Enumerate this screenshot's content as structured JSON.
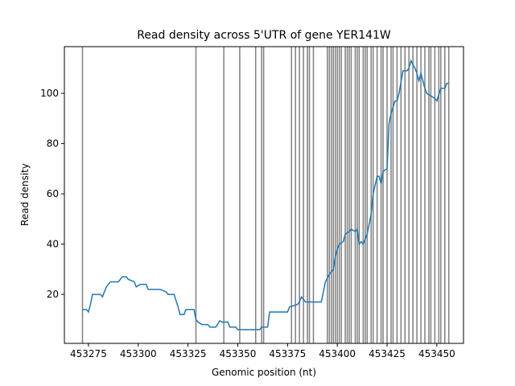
{
  "chart_data": {
    "type": "line",
    "title": "Read density across 5'UTR of gene YER141W",
    "xlabel": "Genomic position (nt)",
    "ylabel": "Read density",
    "xlim": [
      453262.9,
      453463.4
    ],
    "ylim": [
      0.5,
      118.6
    ],
    "xticks": [
      453275,
      453300,
      453325,
      453350,
      453375,
      453400,
      453425,
      453450
    ],
    "yticks": [
      20,
      40,
      60,
      80,
      100
    ],
    "x": [
      453272,
      453274,
      453275,
      453276,
      453277,
      453281,
      453282,
      453284,
      453286,
      453290,
      453292,
      453294,
      453295,
      453298,
      453299,
      453301,
      453304,
      453305,
      453311,
      453314,
      453315,
      453318,
      453320,
      453321,
      453323,
      453324,
      453328,
      453329,
      453330,
      453332,
      453335,
      453336,
      453339,
      453341,
      453342,
      453345,
      453346,
      453349,
      453350,
      453359,
      453361,
      453362,
      453365,
      453366,
      453375,
      453376,
      453380,
      453381,
      453382,
      453383,
      453384,
      453392,
      453393,
      453394,
      453396,
      453398,
      453399,
      453400,
      453401,
      453403,
      453404,
      453406,
      453407,
      453409,
      453410,
      453411,
      453412,
      453413,
      453415,
      453416,
      453417,
      453418,
      453420,
      453421,
      453422,
      453423,
      453425,
      453426,
      453427,
      453429,
      453430,
      453431,
      453433,
      453435,
      453436,
      453437,
      453439,
      453440,
      453441,
      453442,
      453444,
      453445,
      453447,
      453449,
      453450,
      453452,
      453454,
      453455,
      453456
    ],
    "series": [
      {
        "color": "#1f77b4",
        "values": [
          14,
          14,
          13,
          16,
          20,
          20,
          19,
          23,
          25,
          25,
          27,
          27,
          26,
          25,
          23,
          24,
          24,
          22,
          22,
          21,
          20,
          20,
          15,
          12,
          12,
          14,
          14,
          10,
          9,
          8,
          8,
          7,
          7,
          9.5,
          9,
          9,
          7,
          7,
          6,
          6,
          6,
          7,
          7,
          13,
          13,
          15,
          16,
          17,
          19,
          18,
          17,
          17,
          21,
          25,
          28,
          30,
          35,
          38,
          40,
          41,
          44,
          45,
          46,
          45,
          46,
          40,
          41,
          40,
          44,
          48,
          52,
          60,
          67,
          67,
          64,
          69,
          70,
          88,
          92,
          97,
          97,
          100,
          109,
          109,
          110,
          113,
          110,
          108,
          105,
          108,
          102,
          100,
          99,
          98,
          97,
          102,
          102,
          104,
          104
        ]
      }
    ],
    "vlines": [
      453272,
      453329,
      453343,
      453351,
      453359,
      453362,
      453363,
      453377,
      453379,
      453381,
      453383,
      453385,
      453386,
      453388,
      453395,
      453396,
      453397,
      453398,
      453399,
      453400,
      453401,
      453402,
      453404,
      453405,
      453406,
      453407,
      453409,
      453410,
      453411,
      453413,
      453414,
      453415,
      453417,
      453418,
      453420,
      453422,
      453423,
      453425,
      453427,
      453428,
      453430,
      453432,
      453434,
      453436,
      453438,
      453440,
      453442,
      453444,
      453446,
      453447,
      453449,
      453451,
      453452,
      453454,
      453456
    ],
    "vline_color": "#808080"
  }
}
